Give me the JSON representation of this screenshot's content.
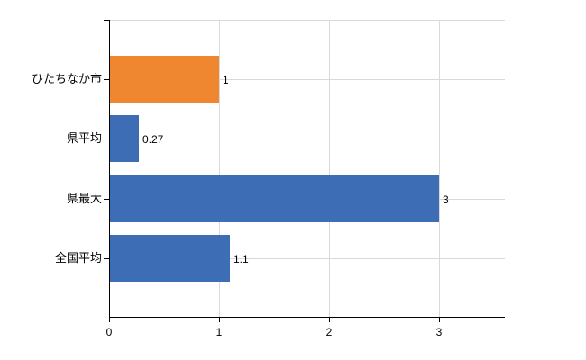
{
  "chart_data": {
    "type": "bar",
    "orientation": "horizontal",
    "categories": [
      "ひたちなか市",
      "県平均",
      "県最大",
      "全国平均"
    ],
    "values": [
      1,
      0.27,
      3,
      1.1
    ],
    "value_labels": [
      "1",
      "0.27",
      "3",
      "1.1"
    ],
    "bar_colors": [
      "#ee8730",
      "#3d6db5",
      "#3d6db5",
      "#3d6db5"
    ],
    "title": "",
    "xlabel": "",
    "ylabel": "",
    "xlim": [
      0,
      3.6
    ],
    "x_ticks": [
      0,
      1,
      2,
      3
    ],
    "x_tick_labels": [
      "0",
      "1",
      "2",
      "3"
    ],
    "grid": true,
    "legend": false,
    "colors": {
      "axis": "#000000",
      "gridline": "#d9d9d9",
      "background": "#ffffff",
      "text": "#000000",
      "bar_orange": "#ee8730",
      "bar_blue": "#3d6db5"
    }
  }
}
